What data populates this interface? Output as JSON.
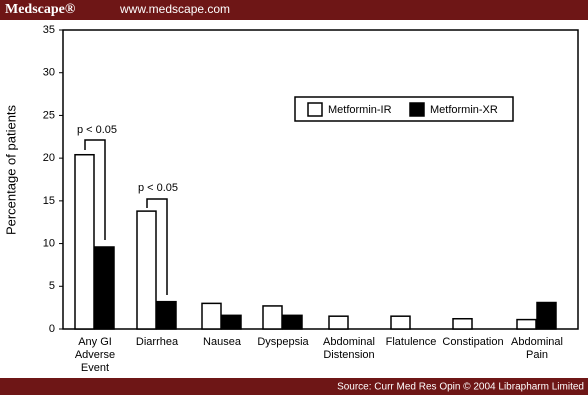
{
  "header": {
    "brand": "Medscape®",
    "url": "www.medscape.com"
  },
  "footer": {
    "source": "Source: Curr Med Res Opin © 2004 Librapharm Limited"
  },
  "chart_data": {
    "type": "bar",
    "y_label": "Percentage of patients",
    "categories": [
      "Any GI Adverse Event",
      "Diarrhea",
      "Nausea",
      "Dyspepsia",
      "Abdominal Distension",
      "Flatulence",
      "Constipation",
      "Abdominal Pain"
    ],
    "series": [
      {
        "name": "Metformin-IR",
        "color": "#ffffff",
        "values": [
          20.4,
          13.8,
          3.0,
          2.7,
          1.5,
          1.5,
          1.2,
          1.1
        ]
      },
      {
        "name": "Metformin-XR",
        "color": "#000000",
        "values": [
          9.6,
          3.2,
          1.6,
          1.6,
          0,
          0,
          0,
          3.1
        ]
      }
    ],
    "ylim": [
      0,
      35
    ],
    "yticks": [
      0,
      5,
      10,
      15,
      20,
      25,
      30,
      35
    ],
    "annotations": [
      "p < 0.05",
      "p < 0.05"
    ]
  }
}
